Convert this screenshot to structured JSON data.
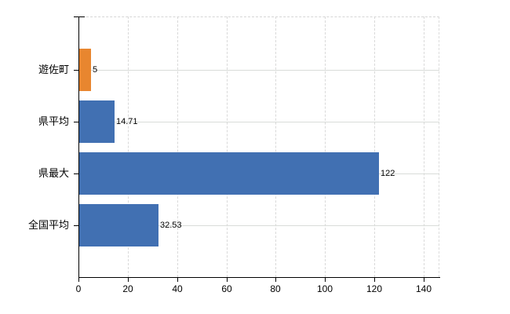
{
  "chart_data": {
    "type": "bar",
    "orientation": "horizontal",
    "title": "",
    "xlabel": "",
    "ylabel": "",
    "categories": [
      "遊佐町",
      "県平均",
      "県最大",
      "全国平均"
    ],
    "values": [
      5,
      14.71,
      122,
      32.53
    ],
    "value_labels": [
      "5",
      "14.71",
      "122",
      "32.53"
    ],
    "bar_colors": [
      "#e8862f",
      "#4170b2",
      "#4170b2",
      "#4170b2"
    ],
    "x_ticks": [
      0,
      20,
      40,
      60,
      80,
      100,
      120,
      140
    ],
    "x_tick_labels": [
      "0",
      "20",
      "40",
      "60",
      "80",
      "100",
      "120",
      "140"
    ],
    "xlim": [
      0,
      146.4
    ],
    "grid": true,
    "legend": false
  },
  "colors": {
    "background": "#ffffff",
    "axis": "#000000",
    "gridline": "#d9d9d9",
    "text": "#000000",
    "bar_blue": "#4170b2",
    "bar_orange": "#e8862f"
  }
}
